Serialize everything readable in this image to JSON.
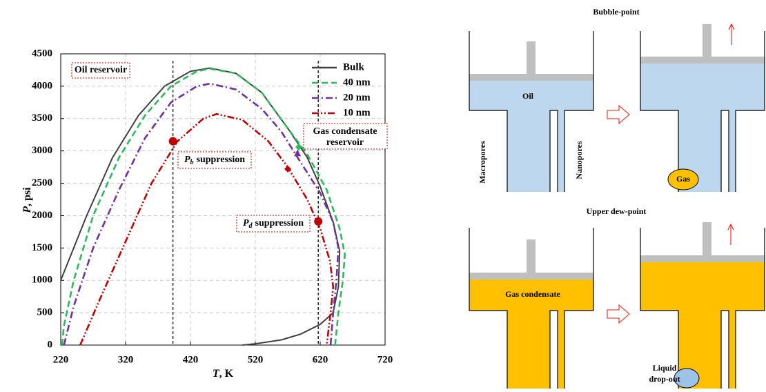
{
  "chart_data": {
    "type": "line",
    "xlabel": {
      "symbol": "T",
      "unit": ", K"
    },
    "ylabel": {
      "symbol": "P",
      "unit": ", psi"
    },
    "xlim": [
      220,
      720
    ],
    "xticks": [
      220,
      320,
      420,
      520,
      620,
      720
    ],
    "ylim": [
      0,
      4500
    ],
    "yticks": [
      0,
      500,
      1000,
      1500,
      2000,
      2500,
      3000,
      3500,
      4000,
      4500
    ],
    "grid": true,
    "legend": "upper right",
    "series": [
      {
        "name": "Bulk",
        "color": "#404040",
        "linestyle": "solid",
        "x": [
          220,
          260,
          300,
          340,
          380,
          420,
          450,
          490,
          530,
          570,
          600,
          620,
          640,
          650,
          648,
          640,
          620,
          590,
          560,
          520,
          500
        ],
        "values": [
          1000,
          2000,
          2900,
          3550,
          4000,
          4230,
          4280,
          4200,
          3900,
          3350,
          2900,
          2450,
          1900,
          1450,
          900,
          500,
          320,
          170,
          80,
          20,
          0
        ]
      },
      {
        "name": "40 nm",
        "color": "#2eb85c",
        "linestyle": "dashed",
        "x": [
          222,
          225,
          240,
          270,
          310,
          350,
          390,
          430,
          450,
          490,
          530,
          570,
          600,
          630,
          650,
          658,
          655,
          648,
          643
        ],
        "values": [
          0,
          300,
          1000,
          2000,
          2900,
          3550,
          4000,
          4230,
          4270,
          4200,
          3900,
          3350,
          2950,
          2400,
          1800,
          1400,
          1000,
          500,
          0
        ]
      },
      {
        "name": "20 nm",
        "color": "#7030a0",
        "linestyle": "dashdot",
        "x": [
          225,
          240,
          270,
          310,
          350,
          390,
          430,
          450,
          490,
          530,
          560,
          585,
          620,
          640,
          648,
          645,
          640,
          636
        ],
        "values": [
          0,
          600,
          1500,
          2400,
          3200,
          3750,
          4000,
          4040,
          3950,
          3650,
          3300,
          2900,
          2350,
          1900,
          1500,
          1000,
          500,
          0
        ]
      },
      {
        "name": "10 nm",
        "color": "#c00000",
        "linestyle": "dashdotdot",
        "x": [
          250,
          280,
          320,
          360,
          400,
          440,
          460,
          500,
          540,
          570,
          600,
          620,
          635,
          640,
          636,
          630
        ],
        "values": [
          0,
          700,
          1600,
          2500,
          3150,
          3500,
          3570,
          3480,
          3150,
          2750,
          2250,
          1800,
          1300,
          900,
          500,
          0
        ]
      }
    ],
    "markers": [
      {
        "x": 393,
        "y": 3150,
        "color": "#c00000",
        "shape": "circle"
      },
      {
        "x": 617,
        "y": 1910,
        "color": "#c00000",
        "shape": "circle"
      },
      {
        "x": 570,
        "y": 2720,
        "color": "#c00000",
        "shape": "diamond"
      },
      {
        "x": 585,
        "y": 2960,
        "color": "#7030a0",
        "shape": "triangle"
      },
      {
        "x": 587,
        "y": 3060,
        "color": "#2eb85c",
        "shape": "diamond"
      }
    ],
    "vlines": [
      393,
      617
    ],
    "annotations": {
      "oil": "Oil reservoir",
      "gas": [
        "Gas condensate",
        "reservoir"
      ],
      "pb": {
        "symbol": "P",
        "subscript": "b",
        "text": "suppression"
      },
      "pd": {
        "symbol": "P",
        "subscript": "d",
        "text": "suppression"
      }
    }
  },
  "diagram": {
    "top_title": "Bubble-point",
    "bottom_title": "Upper dew-point",
    "oil": "Oil",
    "gas": "Gas",
    "gas_condensate": "Gas condensate",
    "macropores": "Macropores",
    "nanopores": "Nanopores",
    "liquid_dropout": [
      "Liquid",
      "drop-out"
    ]
  }
}
